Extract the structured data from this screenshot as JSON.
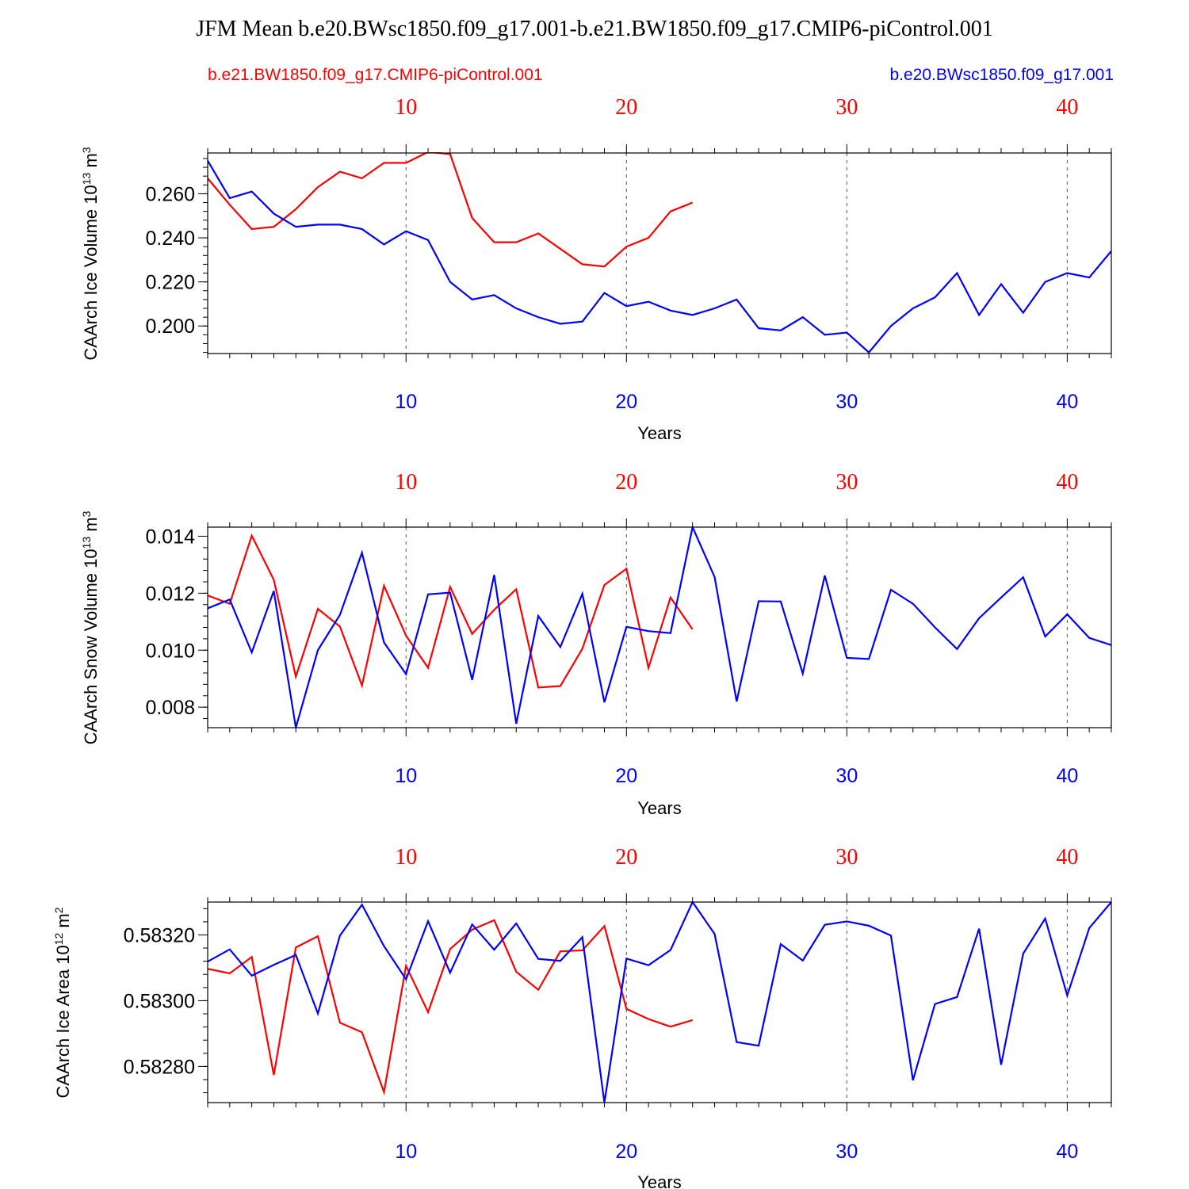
{
  "title": "JFM Mean b.e20.BWsc1850.f09_g17.001-b.e21.BW1850.f09_g17.CMIP6-piControl.001",
  "legend": {
    "left": "b.e21.BW1850.f09_g17.CMIP6-piControl.001",
    "right": "b.e20.BWsc1850.f09_g17.001"
  },
  "colors": {
    "red": "#ff0000",
    "blue": "#0000ff",
    "axis": "#000000",
    "grid": "#555555"
  },
  "chart_data": [
    {
      "type": "line",
      "ylabel_text": "CAArch Ice Volume 10",
      "ylabel_exp": "13",
      "ylabel_unit": "m",
      "ylabel_unit_exp": "3",
      "xlabel": "Years",
      "xlim": [
        1,
        42
      ],
      "ylim": [
        0.1875,
        0.2785
      ],
      "yticks": [
        0.2,
        0.22,
        0.24,
        0.26
      ],
      "ytick_labels": [
        "0.200",
        "0.220",
        "0.240",
        "0.260"
      ],
      "yminor_step": 0.004,
      "xticks": [
        10,
        20,
        30,
        40
      ],
      "xtick_labels": [
        "10",
        "20",
        "30",
        "40"
      ],
      "grid": "vertical-dashed",
      "series": [
        {
          "color": "red",
          "x": [
            1,
            2,
            3,
            4,
            5,
            6,
            7,
            8,
            9,
            10,
            11,
            12,
            13,
            14,
            15,
            16,
            17,
            18,
            19,
            20,
            21,
            22,
            23
          ],
          "values": [
            0.267,
            0.255,
            0.244,
            0.245,
            0.253,
            0.263,
            0.27,
            0.267,
            0.274,
            0.274,
            0.279,
            0.278,
            0.249,
            0.238,
            0.238,
            0.242,
            0.235,
            0.228,
            0.227,
            0.236,
            0.24,
            0.252,
            0.256
          ]
        },
        {
          "color": "blue",
          "x": [
            1,
            2,
            3,
            4,
            5,
            6,
            7,
            8,
            9,
            10,
            11,
            12,
            13,
            14,
            15,
            16,
            17,
            18,
            19,
            20,
            21,
            22,
            23,
            24,
            25,
            26,
            27,
            28,
            29,
            30,
            31,
            32,
            33,
            34,
            35,
            36,
            37,
            38,
            39,
            40,
            41,
            42
          ],
          "values": [
            0.275,
            0.258,
            0.261,
            0.251,
            0.245,
            0.246,
            0.246,
            0.244,
            0.237,
            0.243,
            0.239,
            0.22,
            0.212,
            0.214,
            0.208,
            0.204,
            0.201,
            0.202,
            0.215,
            0.209,
            0.211,
            0.207,
            0.205,
            0.208,
            0.212,
            0.199,
            0.198,
            0.204,
            0.196,
            0.197,
            0.188,
            0.2,
            0.208,
            0.213,
            0.224,
            0.205,
            0.219,
            0.206,
            0.22,
            0.224,
            0.222,
            0.234
          ]
        }
      ]
    },
    {
      "type": "line",
      "ylabel_text": "CAArch Snow Volume 10",
      "ylabel_exp": "13",
      "ylabel_unit": "m",
      "ylabel_unit_exp": "3",
      "xlabel": "Years",
      "xlim": [
        1,
        42
      ],
      "ylim": [
        0.00728,
        0.01432
      ],
      "yticks": [
        0.008,
        0.01,
        0.012,
        0.014
      ],
      "ytick_labels": [
        "0.008",
        "0.010",
        "0.012",
        "0.014"
      ],
      "yminor_step": 0.0004,
      "xticks": [
        10,
        20,
        30,
        40
      ],
      "xtick_labels": [
        "10",
        "20",
        "30",
        "40"
      ],
      "grid": "vertical-dashed",
      "series": [
        {
          "color": "red",
          "x": [
            1,
            2,
            3,
            4,
            5,
            6,
            7,
            8,
            9,
            10,
            11,
            12,
            13,
            14,
            15,
            16,
            17,
            18,
            19,
            20,
            21,
            22,
            23
          ],
          "values": [
            0.01192,
            0.01163,
            0.01402,
            0.01247,
            0.00907,
            0.01145,
            0.01083,
            0.00876,
            0.01226,
            0.01051,
            0.00938,
            0.01222,
            0.01057,
            0.01142,
            0.01214,
            0.00869,
            0.00874,
            0.01005,
            0.01229,
            0.01286,
            0.00938,
            0.01185,
            0.01073
          ]
        },
        {
          "color": "blue",
          "x": [
            1,
            2,
            3,
            4,
            5,
            6,
            7,
            8,
            9,
            10,
            11,
            12,
            13,
            14,
            15,
            16,
            17,
            18,
            19,
            20,
            21,
            22,
            23,
            24,
            25,
            26,
            27,
            28,
            29,
            30,
            31,
            32,
            33,
            34,
            35,
            36,
            37,
            38,
            39,
            40,
            41,
            42
          ],
          "values": [
            0.01147,
            0.01178,
            0.00992,
            0.01208,
            0.00728,
            0.01,
            0.01124,
            0.01342,
            0.01027,
            0.00916,
            0.01196,
            0.01202,
            0.00896,
            0.01264,
            0.00742,
            0.0112,
            0.01011,
            0.01198,
            0.00817,
            0.01082,
            0.01067,
            0.0106,
            0.01432,
            0.01257,
            0.0082,
            0.01172,
            0.01171,
            0.00918,
            0.01262,
            0.00973,
            0.00969,
            0.01212,
            0.01163,
            0.0108,
            0.01004,
            0.01112,
            0.01185,
            0.01256,
            0.01048,
            0.01126,
            0.01043,
            0.01018
          ]
        }
      ]
    },
    {
      "type": "line",
      "ylabel_text": "CAArch Ice Area 10",
      "ylabel_exp": "12",
      "ylabel_unit": "m",
      "ylabel_unit_exp": "2",
      "xlabel": "Years",
      "xlim": [
        1,
        42
      ],
      "ylim": [
        0.58269,
        0.5833
      ],
      "yticks": [
        0.5828,
        0.583,
        0.5832
      ],
      "ytick_labels": [
        "0.58280",
        "0.58300",
        "0.58320"
      ],
      "yminor_step": 4e-05,
      "xticks": [
        10,
        20,
        30,
        40
      ],
      "xtick_labels": [
        "10",
        "20",
        "30",
        "40"
      ],
      "grid": "vertical-dashed",
      "series": [
        {
          "color": "red",
          "x": [
            1,
            2,
            3,
            4,
            5,
            6,
            7,
            8,
            9,
            10,
            11,
            12,
            13,
            14,
            15,
            16,
            17,
            18,
            19,
            20,
            21,
            22,
            23
          ],
          "values": [
            0.583097,
            0.583083,
            0.583133,
            0.582774,
            0.583162,
            0.583196,
            0.582933,
            0.582904,
            0.582722,
            0.583106,
            0.582965,
            0.583157,
            0.583216,
            0.583245,
            0.583088,
            0.583033,
            0.58315,
            0.583153,
            0.583227,
            0.582975,
            0.582944,
            0.582921,
            0.582941
          ]
        },
        {
          "color": "blue",
          "x": [
            1,
            2,
            3,
            4,
            5,
            6,
            7,
            8,
            9,
            10,
            11,
            12,
            13,
            14,
            15,
            16,
            17,
            18,
            19,
            20,
            21,
            22,
            23,
            24,
            25,
            26,
            27,
            28,
            29,
            30,
            31,
            32,
            33,
            34,
            35,
            36,
            37,
            38,
            39,
            40,
            41,
            42
          ],
          "values": [
            0.583119,
            0.583156,
            0.583076,
            0.583109,
            0.583139,
            0.582961,
            0.583198,
            0.583292,
            0.583166,
            0.583065,
            0.583242,
            0.583085,
            0.583232,
            0.583155,
            0.583235,
            0.583127,
            0.583121,
            0.583193,
            0.58269,
            0.583128,
            0.583108,
            0.583154,
            0.5833,
            0.583203,
            0.582874,
            0.582863,
            0.583172,
            0.583122,
            0.583231,
            0.583241,
            0.583228,
            0.583198,
            0.582758,
            0.58299,
            0.583011,
            0.583219,
            0.582805,
            0.583143,
            0.58325,
            0.583016,
            0.583221,
            0.5833
          ]
        }
      ]
    }
  ]
}
